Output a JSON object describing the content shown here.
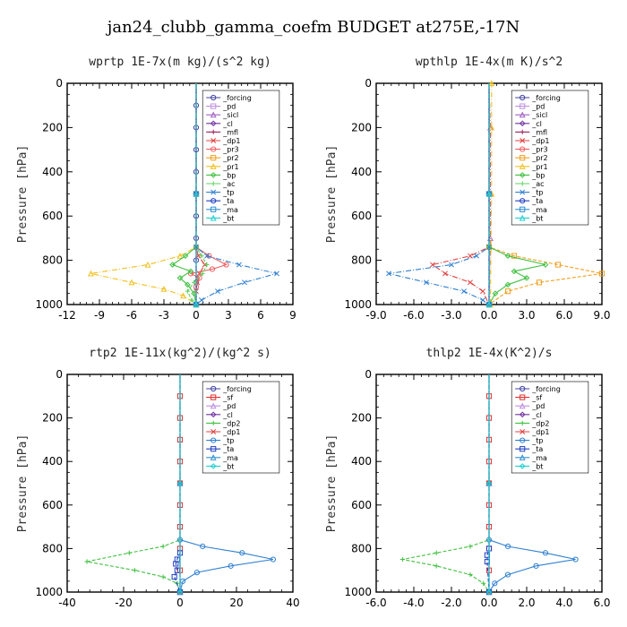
{
  "figure": {
    "title": "jan24_clubb_gamma_coefm  BUDGET at275E,-17N"
  },
  "colors": {
    "_forcing": "#4040a0",
    "_sf": "#e03030",
    "_pd": "#c090e0",
    "_sicl": "#a060c0",
    "_cl": "#7030a0",
    "_mfl": "#a02060",
    "_dp1": "#e04040",
    "_dp2": "#40c040",
    "_pr3": "#f06060",
    "_pr2": "#f0a020",
    "_pr1": "#f0c020",
    "_bp": "#40c040",
    "_ac": "#60d060",
    "_tp": "#3080d0",
    "_ta": "#2040c0",
    "_ma": "#3090d0",
    "_bt": "#20d0d0"
  },
  "chart_data": [
    {
      "type": "line",
      "title": "wprtp   1E-7x(m kg)/(s^2 kg)",
      "ylabel": "Pressure [hPa]",
      "xlim": [
        -12,
        9
      ],
      "ylim": [
        1000,
        0
      ],
      "xticks": [
        -12,
        -9,
        -6,
        -3,
        0,
        3,
        6,
        9
      ],
      "xtick_labels": [
        "-12",
        "-9",
        "-6",
        "-3",
        "0",
        "3",
        "6",
        "9"
      ],
      "yticks": [
        0,
        200,
        400,
        600,
        800,
        1000
      ],
      "ytick_labels": [
        "0",
        "200",
        "400",
        "600",
        "800",
        "1000"
      ],
      "legend_position": "top-right",
      "series": [
        {
          "name": "_forcing",
          "p": [
            0,
            100,
            200,
            300,
            400,
            500,
            600,
            700,
            800,
            900,
            1000
          ],
          "x": [
            0,
            0,
            0,
            0,
            0,
            0,
            0,
            0,
            0,
            0,
            0
          ]
        },
        {
          "name": "_pd",
          "p": [
            0,
            500,
            1000
          ],
          "x": [
            0,
            0,
            0
          ]
        },
        {
          "name": "_sicl",
          "p": [
            0,
            500,
            1000
          ],
          "x": [
            0,
            0,
            0
          ]
        },
        {
          "name": "_cl",
          "p": [
            0,
            500,
            1000
          ],
          "x": [
            0,
            0,
            0
          ]
        },
        {
          "name": "_mfl",
          "p": [
            0,
            500,
            1000
          ],
          "x": [
            0,
            0,
            0
          ]
        },
        {
          "name": "_dp1",
          "p": [
            0,
            740,
            780,
            820,
            860,
            900,
            940,
            1000
          ],
          "x": [
            0,
            0,
            0.2,
            0.8,
            0.3,
            0.1,
            0,
            0
          ]
        },
        {
          "name": "_pr3",
          "p": [
            0,
            740,
            780,
            820,
            840,
            860,
            880,
            920,
            1000
          ],
          "x": [
            0,
            0,
            1.2,
            2.8,
            1.5,
            -0.5,
            0.3,
            0,
            0
          ]
        },
        {
          "name": "_pr2",
          "p": [
            0,
            500,
            1000
          ],
          "x": [
            0,
            0,
            0
          ]
        },
        {
          "name": "_pr1",
          "p": [
            0,
            740,
            780,
            820,
            860,
            900,
            930,
            960,
            1000
          ],
          "x": [
            0,
            0,
            -1.5,
            -4.5,
            -9.8,
            -6,
            -3,
            -1.2,
            0
          ]
        },
        {
          "name": "_bp",
          "p": [
            0,
            740,
            780,
            820,
            850,
            880,
            910,
            950,
            1000
          ],
          "x": [
            0,
            0,
            -1,
            -2.2,
            -0.5,
            -1.5,
            -0.8,
            -0.2,
            0
          ]
        },
        {
          "name": "_ac",
          "p": [
            0,
            740,
            780,
            820,
            860,
            900,
            940,
            980,
            1000
          ],
          "x": [
            0,
            0,
            0.5,
            1,
            0.6,
            -0.2,
            -0.8,
            -0.4,
            0
          ]
        },
        {
          "name": "_tp",
          "p": [
            0,
            740,
            780,
            820,
            860,
            900,
            940,
            980,
            1000
          ],
          "x": [
            0,
            0,
            1,
            4,
            7.5,
            4.5,
            2,
            0.5,
            0
          ]
        },
        {
          "name": "_ta",
          "p": [
            0,
            500,
            1000
          ],
          "x": [
            0,
            0,
            0
          ]
        },
        {
          "name": "_ma",
          "p": [
            0,
            500,
            1000
          ],
          "x": [
            0,
            0,
            0
          ]
        },
        {
          "name": "_bt",
          "p": [
            0,
            500,
            1000
          ],
          "x": [
            0,
            0,
            0
          ]
        }
      ]
    },
    {
      "type": "line",
      "title": "wpthlp   1E-4x(m K)/s^2",
      "ylabel": "Pressure [hPa]",
      "xlim": [
        -9,
        9
      ],
      "ylim": [
        1000,
        0
      ],
      "xticks": [
        -9,
        -6,
        -3,
        0,
        3,
        6,
        9
      ],
      "xtick_labels": [
        "-9.0",
        "-6.0",
        "-3.0",
        "0.0",
        "3.0",
        "6.0",
        "9.0"
      ],
      "yticks": [
        0,
        200,
        400,
        600,
        800,
        1000
      ],
      "ytick_labels": [
        "0",
        "200",
        "400",
        "600",
        "800",
        "1000"
      ],
      "legend_position": "top-right",
      "series": [
        {
          "name": "_forcing",
          "p": [
            0,
            500,
            1000
          ],
          "x": [
            0,
            0,
            0
          ]
        },
        {
          "name": "_pd",
          "p": [
            0,
            500,
            1000
          ],
          "x": [
            0,
            0,
            0
          ]
        },
        {
          "name": "_sicl",
          "p": [
            0,
            200,
            500,
            700,
            1000
          ],
          "x": [
            0,
            0.1,
            0.1,
            0.1,
            0
          ]
        },
        {
          "name": "_cl",
          "p": [
            0,
            500,
            1000
          ],
          "x": [
            0,
            0,
            0
          ]
        },
        {
          "name": "_mfl",
          "p": [
            0,
            500,
            1000
          ],
          "x": [
            0,
            0,
            0
          ]
        },
        {
          "name": "_dp1",
          "p": [
            0,
            740,
            780,
            820,
            860,
            900,
            940,
            1000
          ],
          "x": [
            0,
            0,
            -1.5,
            -4.5,
            -3.5,
            -1.5,
            -0.5,
            0
          ]
        },
        {
          "name": "_pr3",
          "p": [
            0,
            500,
            1000
          ],
          "x": [
            0,
            0,
            0
          ]
        },
        {
          "name": "_pr2",
          "p": [
            0,
            740,
            780,
            820,
            860,
            900,
            940,
            1000
          ],
          "x": [
            0,
            0,
            2,
            5.5,
            9,
            4,
            1.5,
            0
          ]
        },
        {
          "name": "_pr1",
          "p": [
            0,
            0,
            200,
            500,
            1000
          ],
          "x": [
            0.1,
            0.2,
            0.2,
            0.2,
            0.1
          ]
        },
        {
          "name": "_bp",
          "p": [
            0,
            740,
            780,
            820,
            850,
            880,
            910,
            950,
            1000
          ],
          "x": [
            0,
            0,
            1.5,
            4.5,
            2,
            3,
            1.5,
            0.5,
            0
          ]
        },
        {
          "name": "_ac",
          "p": [
            0,
            500,
            1000
          ],
          "x": [
            0,
            0,
            0
          ]
        },
        {
          "name": "_tp",
          "p": [
            0,
            740,
            780,
            820,
            860,
            900,
            940,
            980,
            1000
          ],
          "x": [
            0,
            0,
            -1,
            -3,
            -8,
            -5,
            -2,
            -0.5,
            0
          ]
        },
        {
          "name": "_ta",
          "p": [
            0,
            500,
            1000
          ],
          "x": [
            0,
            0,
            0
          ]
        },
        {
          "name": "_ma",
          "p": [
            0,
            500,
            1000
          ],
          "x": [
            0,
            0,
            0
          ]
        },
        {
          "name": "_bt",
          "p": [
            0,
            500,
            1000
          ],
          "x": [
            0,
            0,
            0
          ]
        }
      ]
    },
    {
      "type": "line",
      "title": "rtp2   1E-11x(kg^2)/(kg^2 s)",
      "ylabel": "Pressure [hPa]",
      "xlim": [
        -40,
        40
      ],
      "ylim": [
        1000,
        0
      ],
      "xticks": [
        -40,
        -20,
        0,
        20,
        40
      ],
      "xtick_labels": [
        "-40",
        "-20",
        "0",
        "20",
        "40"
      ],
      "yticks": [
        0,
        200,
        400,
        600,
        800,
        1000
      ],
      "ytick_labels": [
        "0",
        "200",
        "400",
        "600",
        "800",
        "1000"
      ],
      "legend_position": "top-right",
      "series": [
        {
          "name": "_forcing",
          "p": [
            0,
            500,
            1000
          ],
          "x": [
            0,
            0,
            0
          ]
        },
        {
          "name": "_sf",
          "p": [
            0,
            100,
            200,
            300,
            400,
            500,
            600,
            700,
            800,
            900,
            1000
          ],
          "x": [
            0,
            0,
            0,
            0,
            0,
            0,
            0,
            0,
            0,
            0,
            0
          ]
        },
        {
          "name": "_pd",
          "p": [
            0,
            500,
            1000
          ],
          "x": [
            0,
            0,
            0
          ]
        },
        {
          "name": "_cl",
          "p": [
            0,
            500,
            1000
          ],
          "x": [
            0,
            0,
            0
          ]
        },
        {
          "name": "_dp2",
          "p": [
            0,
            760,
            790,
            820,
            860,
            900,
            930,
            960,
            1000
          ],
          "x": [
            0,
            0,
            -6,
            -18,
            -33,
            -16,
            -6,
            -1,
            0
          ]
        },
        {
          "name": "_dp1",
          "p": [
            0,
            500,
            1000
          ],
          "x": [
            0,
            0,
            0
          ]
        },
        {
          "name": "_tp",
          "p": [
            0,
            760,
            790,
            820,
            850,
            880,
            910,
            950,
            1000
          ],
          "x": [
            0,
            0,
            8,
            22,
            33,
            18,
            6,
            1,
            0
          ]
        },
        {
          "name": "_ta",
          "p": [
            0,
            820,
            850,
            870,
            900,
            930,
            1000
          ],
          "x": [
            0,
            0,
            -1,
            -1.5,
            -1,
            -2,
            0
          ]
        },
        {
          "name": "_ma",
          "p": [
            0,
            500,
            1000
          ],
          "x": [
            0,
            0,
            0
          ]
        },
        {
          "name": "_bt",
          "p": [
            0,
            500,
            1000
          ],
          "x": [
            0,
            0,
            0
          ]
        }
      ]
    },
    {
      "type": "line",
      "title": "thlp2   1E-4x(K^2)/s",
      "ylabel": "Pressure [hPa]",
      "xlim": [
        -6,
        6
      ],
      "ylim": [
        1000,
        0
      ],
      "xticks": [
        -6,
        -4,
        -2,
        0,
        2,
        4,
        6
      ],
      "xtick_labels": [
        "-6.0",
        "-4.0",
        "-2.0",
        "0.0",
        "2.0",
        "4.0",
        "6.0"
      ],
      "yticks": [
        0,
        200,
        400,
        600,
        800,
        1000
      ],
      "ytick_labels": [
        "0",
        "200",
        "400",
        "600",
        "800",
        "1000"
      ],
      "legend_position": "top-right",
      "series": [
        {
          "name": "_forcing",
          "p": [
            0,
            500,
            1000
          ],
          "x": [
            0,
            0,
            0
          ]
        },
        {
          "name": "_sf",
          "p": [
            0,
            100,
            200,
            300,
            400,
            500,
            600,
            700,
            800,
            900,
            1000
          ],
          "x": [
            0,
            0,
            0,
            0,
            0,
            0,
            0,
            0,
            0,
            0,
            0
          ]
        },
        {
          "name": "_pd",
          "p": [
            0,
            500,
            1000
          ],
          "x": [
            0,
            0,
            0
          ]
        },
        {
          "name": "_cl",
          "p": [
            0,
            500,
            1000
          ],
          "x": [
            0,
            0,
            0
          ]
        },
        {
          "name": "_dp2",
          "p": [
            0,
            760,
            790,
            820,
            850,
            880,
            920,
            960,
            1000
          ],
          "x": [
            0,
            0,
            -1,
            -2.8,
            -4.6,
            -2.8,
            -1,
            -0.3,
            0
          ]
        },
        {
          "name": "_dp1",
          "p": [
            0,
            500,
            1000
          ],
          "x": [
            0,
            0,
            0
          ]
        },
        {
          "name": "_tp",
          "p": [
            0,
            760,
            790,
            820,
            850,
            880,
            920,
            960,
            1000
          ],
          "x": [
            0,
            0,
            1,
            3,
            4.6,
            2.5,
            1,
            0.3,
            0
          ]
        },
        {
          "name": "_ta",
          "p": [
            0,
            800,
            830,
            860,
            1000
          ],
          "x": [
            0,
            0,
            -0.1,
            -0.1,
            0
          ]
        },
        {
          "name": "_ma",
          "p": [
            0,
            500,
            1000
          ],
          "x": [
            0,
            0,
            0
          ]
        },
        {
          "name": "_bt",
          "p": [
            0,
            500,
            1000
          ],
          "x": [
            0,
            0,
            0
          ]
        }
      ]
    }
  ]
}
